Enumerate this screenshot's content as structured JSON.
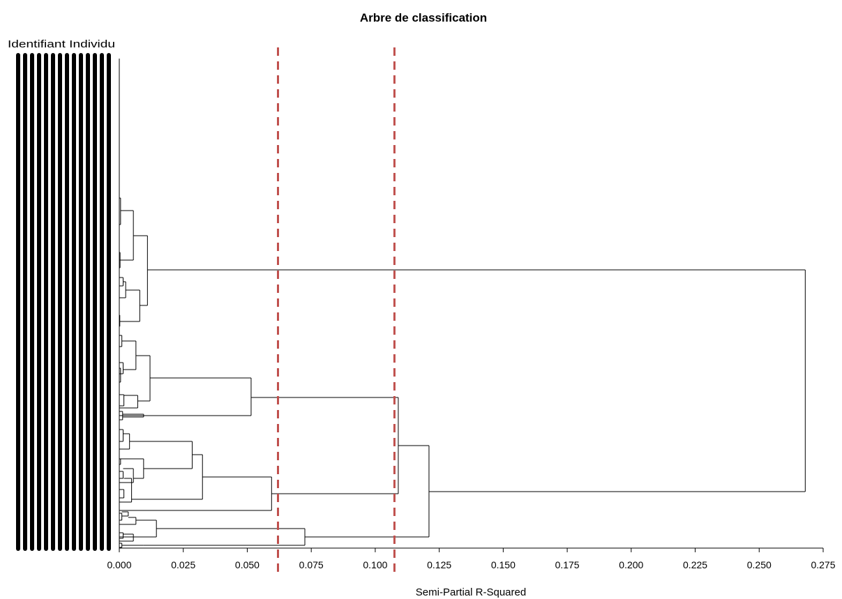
{
  "chart_data": {
    "type": "dendrogram",
    "title": "Arbre de classification",
    "ylabel": "Identifiant Individu",
    "xlabel": "Semi-Partial R-Squared",
    "xlim": [
      0,
      0.275
    ],
    "xticks": [
      0,
      0.025,
      0.05,
      0.075,
      0.1,
      0.125,
      0.15,
      0.175,
      0.2,
      0.225,
      0.25,
      0.275
    ],
    "xtick_labels": [
      "0.000",
      "0.025",
      "0.050",
      "0.075",
      "0.100",
      "0.125",
      "0.150",
      "0.175",
      "0.200",
      "0.225",
      "0.250",
      "0.275"
    ],
    "orientation": "horizontal",
    "leaf_label_count": 14,
    "cut_lines": [
      {
        "x": 0.062,
        "color": "#c0504d",
        "style": "dashed"
      },
      {
        "x": 0.1075,
        "color": "#c0504d",
        "style": "dashed"
      }
    ],
    "merges": [
      {
        "height": 0.268,
        "children": [
          "A",
          "B"
        ]
      },
      {
        "height": 0.011,
        "name": "A",
        "children": [
          "A1",
          "A2"
        ]
      },
      {
        "height": 0.121,
        "name": "B",
        "children": [
          "B1",
          "B2"
        ]
      },
      {
        "height": 0.109,
        "name": "B1",
        "children": [
          "B1a",
          "B1b"
        ]
      },
      {
        "height": 0.0515,
        "name": "B1a"
      },
      {
        "height": 0.0595,
        "name": "B1b"
      },
      {
        "height": 0.0725,
        "name": "B2"
      }
    ]
  }
}
